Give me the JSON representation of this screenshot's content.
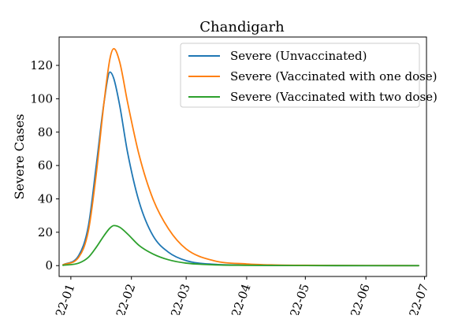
{
  "chart_data": {
    "type": "line",
    "title": "Chandigarh",
    "xlabel": "",
    "ylabel": "Severe Cases",
    "x_ticks": [
      "22-01",
      "22-02",
      "22-03",
      "22-04",
      "22-05",
      "22-06",
      "22-07"
    ],
    "y_ticks": [
      "0",
      "20",
      "40",
      "60",
      "80",
      "100",
      "120"
    ],
    "xlim": [
      "2021-12-26",
      "2022-07-02"
    ],
    "ylim": [
      -6.5,
      137
    ],
    "legend_position": "upper right",
    "x": [
      "2021-12-28",
      "2022-01-05",
      "2022-01-10",
      "2022-01-14",
      "2022-01-18",
      "2022-01-21",
      "2022-01-23",
      "2022-01-26",
      "2022-01-30",
      "2022-02-05",
      "2022-02-12",
      "2022-02-20",
      "2022-03-01",
      "2022-03-15",
      "2022-04-01",
      "2022-04-15",
      "2022-05-01",
      "2022-06-01",
      "2022-06-28"
    ],
    "series": [
      {
        "name": "Severe (Unvaccinated)",
        "color": "#1f77b4",
        "values": [
          0.5,
          6,
          24,
          60,
          98,
          116,
          112,
          96,
          68,
          38,
          18,
          8,
          3,
          0.8,
          0.3,
          0.1,
          0.05,
          0,
          0
        ]
      },
      {
        "name": "Severe (Vaccinated with one dose)",
        "color": "#ff7f0e",
        "values": [
          0.5,
          5,
          21,
          55,
          98,
          124,
          130,
          122,
          98,
          66,
          40,
          22,
          10,
          3,
          1,
          0.4,
          0.2,
          0.05,
          0
        ]
      },
      {
        "name": "Severe (Vaccinated with two dose)",
        "color": "#2ca02c",
        "values": [
          0.2,
          1.5,
          5,
          11,
          18,
          22.5,
          24,
          23,
          19,
          12,
          7,
          3.5,
          1.5,
          0.5,
          0.2,
          0.1,
          0.05,
          0,
          0
        ]
      }
    ]
  }
}
